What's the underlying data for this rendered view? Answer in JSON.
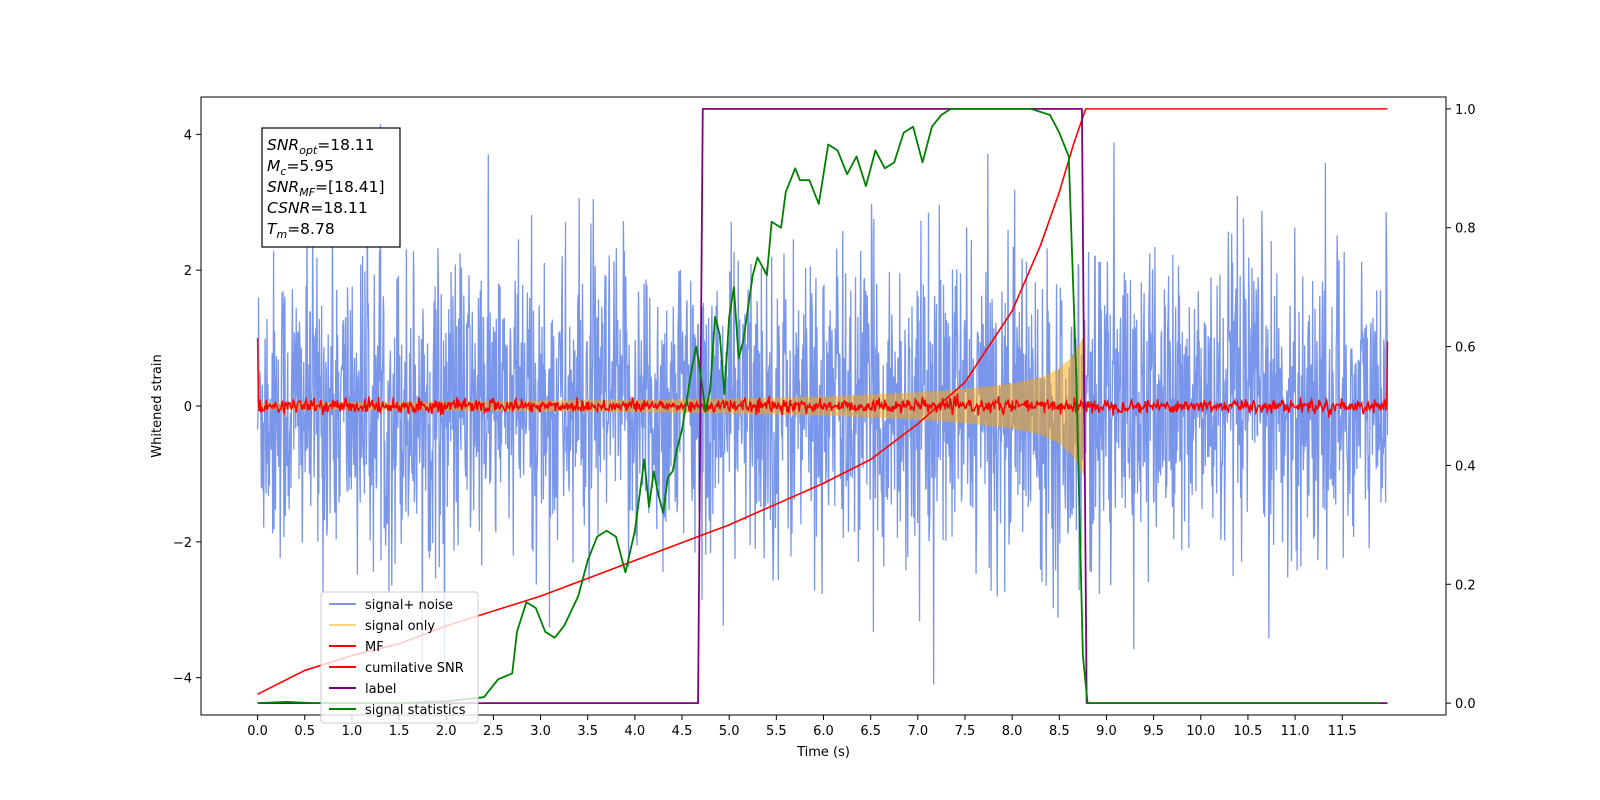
{
  "chart_data": {
    "type": "line",
    "title": "",
    "xlabel": "Time (s)",
    "ylabel": "Whitened strain",
    "xlim": [
      -0.6,
      12.6
    ],
    "ylim": [
      -4.55,
      4.55
    ],
    "y2lim": [
      -0.02,
      1.02
    ],
    "x_ticks": [
      0.0,
      0.5,
      1.0,
      1.5,
      2.0,
      2.5,
      3.0,
      3.5,
      4.0,
      4.5,
      5.0,
      5.5,
      6.0,
      6.5,
      7.0,
      7.5,
      8.0,
      8.5,
      9.0,
      9.5,
      10.0,
      10.5,
      11.0,
      11.5
    ],
    "x_tick_labels": [
      "0.0",
      "0.5",
      "1.0",
      "1.5",
      "2.0",
      "2.5",
      "3.0",
      "3.5",
      "4.0",
      "4.5",
      "5.0",
      "5.5",
      "6.0",
      "6.5",
      "7.0",
      "7.5",
      "8.0",
      "8.5",
      "9.0",
      "9.5",
      "10.0",
      "10.5",
      "11.0",
      "11.5"
    ],
    "y_ticks": [
      -4,
      -2,
      0,
      2,
      4
    ],
    "y_tick_labels": [
      "−4",
      "−2",
      "0",
      "2",
      "4"
    ],
    "y2_ticks": [
      0.0,
      0.2,
      0.4,
      0.6,
      0.8,
      1.0
    ],
    "y2_tick_labels": [
      "0.0",
      "0.2",
      "0.4",
      "0.6",
      "0.8",
      "1.0"
    ],
    "grid": false,
    "legend_position": "lower-left",
    "annotation": [
      {
        "base": "SNR",
        "sub": "opt",
        "value": "=18.11"
      },
      {
        "base": "M",
        "sub": "c",
        "value": "=5.95"
      },
      {
        "base": "SNR",
        "sub": "MF",
        "value": "=[18.41]"
      },
      {
        "base": "CSNR",
        "sub": "",
        "value": "=18.11"
      },
      {
        "base": "T",
        "sub": "m",
        "value": "=8.78"
      }
    ],
    "series": [
      {
        "name": "signal+ noise",
        "color": "#4169e1",
        "opacity": 0.7,
        "axis": "left",
        "kind": "noise",
        "x_range": [
          0.0,
          11.98
        ],
        "typical_amplitude": 1.2,
        "extreme_range": [
          -4.1,
          4.15
        ]
      },
      {
        "name": "signal only",
        "color": "#ffa500",
        "opacity": 0.5,
        "axis": "left",
        "kind": "chirp_envelope",
        "x": [
          0.0,
          1.0,
          2.0,
          3.0,
          4.0,
          5.0,
          6.0,
          7.0,
          7.5,
          8.0,
          8.3,
          8.5,
          8.65,
          8.75,
          8.78
        ],
        "amplitude": [
          0.05,
          0.06,
          0.07,
          0.08,
          0.09,
          0.11,
          0.14,
          0.2,
          0.25,
          0.33,
          0.42,
          0.55,
          0.75,
          1.0,
          1.12
        ]
      },
      {
        "name": "MF",
        "color": "#ff0000",
        "axis": "left",
        "kind": "noise",
        "x_range": [
          0.0,
          11.98
        ],
        "typical_amplitude": 0.05,
        "edge_values": [
          1.0,
          0.95
        ]
      },
      {
        "name": "cumilative SNR",
        "color": "#ff0000",
        "axis": "right",
        "x": [
          0.0,
          0.5,
          1.0,
          1.5,
          2.0,
          2.5,
          3.0,
          3.5,
          4.0,
          4.5,
          5.0,
          5.5,
          6.0,
          6.5,
          7.0,
          7.5,
          8.0,
          8.3,
          8.5,
          8.65,
          8.78,
          11.98
        ],
        "y": [
          0.015,
          0.055,
          0.08,
          0.1,
          0.13,
          0.155,
          0.18,
          0.21,
          0.24,
          0.27,
          0.3,
          0.335,
          0.37,
          0.41,
          0.47,
          0.54,
          0.66,
          0.77,
          0.86,
          0.94,
          1.0,
          1.0
        ]
      },
      {
        "name": "label",
        "color": "#800080",
        "axis": "right",
        "x": [
          0.0,
          4.67,
          4.72,
          8.74,
          8.79,
          11.98
        ],
        "y": [
          0.0,
          0.0,
          1.0,
          1.0,
          0.0,
          0.0
        ]
      },
      {
        "name": "signal statistics",
        "color": "#008000",
        "axis": "right",
        "x": [
          0.0,
          0.3,
          0.6,
          1.0,
          1.5,
          2.0,
          2.4,
          2.55,
          2.7,
          2.75,
          2.85,
          2.95,
          3.05,
          3.15,
          3.25,
          3.4,
          3.5,
          3.6,
          3.7,
          3.8,
          3.9,
          4.0,
          4.05,
          4.1,
          4.15,
          4.2,
          4.25,
          4.3,
          4.35,
          4.4,
          4.45,
          4.5,
          4.6,
          4.65,
          4.7,
          4.75,
          4.8,
          4.85,
          4.9,
          4.95,
          5.0,
          5.05,
          5.1,
          5.15,
          5.25,
          5.3,
          5.4,
          5.45,
          5.55,
          5.6,
          5.7,
          5.75,
          5.85,
          5.95,
          6.05,
          6.15,
          6.25,
          6.35,
          6.45,
          6.55,
          6.65,
          6.75,
          6.85,
          6.95,
          7.05,
          7.15,
          7.25,
          7.35,
          7.45,
          7.6,
          7.75,
          7.85,
          8.0,
          8.2,
          8.4,
          8.5,
          8.6,
          8.68,
          8.75,
          8.8,
          9.0,
          11.0,
          11.9
        ],
        "y": [
          0.0,
          0.002,
          0.0,
          0.0,
          0.0,
          0.003,
          0.01,
          0.04,
          0.05,
          0.12,
          0.17,
          0.16,
          0.12,
          0.11,
          0.13,
          0.18,
          0.24,
          0.28,
          0.29,
          0.28,
          0.22,
          0.29,
          0.35,
          0.41,
          0.33,
          0.39,
          0.35,
          0.32,
          0.38,
          0.39,
          0.43,
          0.46,
          0.56,
          0.6,
          0.55,
          0.49,
          0.53,
          0.65,
          0.62,
          0.52,
          0.65,
          0.7,
          0.58,
          0.61,
          0.72,
          0.75,
          0.72,
          0.81,
          0.8,
          0.86,
          0.9,
          0.88,
          0.88,
          0.84,
          0.94,
          0.93,
          0.89,
          0.92,
          0.87,
          0.93,
          0.9,
          0.91,
          0.96,
          0.97,
          0.91,
          0.97,
          0.99,
          1.0,
          1.0,
          1.0,
          1.0,
          1.0,
          1.0,
          1.0,
          0.99,
          0.96,
          0.92,
          0.55,
          0.08,
          0.0,
          0.0,
          0.0,
          0.0
        ]
      }
    ]
  }
}
